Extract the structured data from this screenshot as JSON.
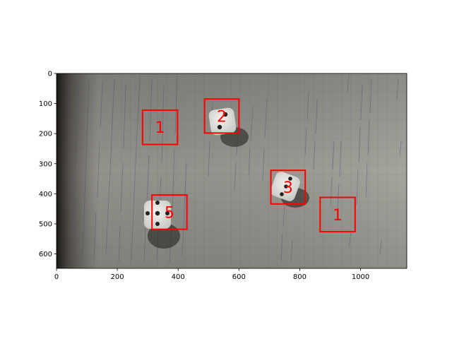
{
  "figure": {
    "type": "image-with-detections",
    "image_extent": {
      "x": [
        0,
        1152
      ],
      "y": [
        648,
        0
      ]
    },
    "xlim": [
      0,
      1152
    ],
    "ylim": [
      648,
      0
    ],
    "x_ticks": [
      0,
      200,
      400,
      600,
      800,
      1000
    ],
    "y_ticks": [
      0,
      100,
      200,
      300,
      400,
      500,
      600
    ],
    "box_color": "#ff0000",
    "detections": [
      {
        "label": "1",
        "x0": 283,
        "y0": 122,
        "x1": 398,
        "y1": 236
      },
      {
        "label": "2",
        "x0": 487,
        "y0": 85,
        "x1": 600,
        "y1": 198
      },
      {
        "label": "3",
        "x0": 705,
        "y0": 322,
        "x1": 818,
        "y1": 434
      },
      {
        "label": "5",
        "x0": 314,
        "y0": 404,
        "x1": 429,
        "y1": 518
      },
      {
        "label": "1",
        "x0": 867,
        "y0": 412,
        "x1": 982,
        "y1": 526
      }
    ]
  }
}
